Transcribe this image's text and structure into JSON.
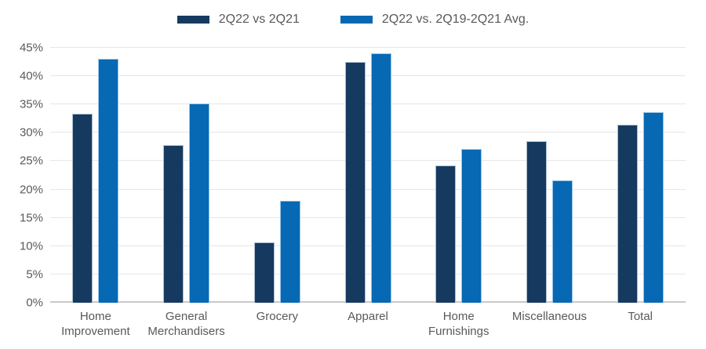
{
  "chart_data": {
    "type": "bar",
    "title": "",
    "categories": [
      "Home Improvement",
      "General Merchandisers",
      "Grocery",
      "Apparel",
      "Home Furnishings",
      "Miscellaneous",
      "Total"
    ],
    "series": [
      {
        "name": "2Q22 vs 2Q21",
        "color": "#163A5F",
        "border_color": "#aebed2",
        "values": [
          33.4,
          27.9,
          10.7,
          42.5,
          24.2,
          28.5,
          31.4
        ]
      },
      {
        "name": "2Q22 vs. 2Q19-2Q21 Avg.",
        "color": "#0768B3",
        "border_color": "#96c3e6",
        "values": [
          43.0,
          35.2,
          18.0,
          44.0,
          27.1,
          21.6,
          33.7
        ]
      }
    ],
    "xlabel": "",
    "ylabel": "",
    "ylim": [
      0,
      45
    ],
    "ytick_step": 5,
    "ytick_labels": [
      "0%",
      "5%",
      "10%",
      "15%",
      "20%",
      "25%",
      "30%",
      "35%",
      "40%",
      "45%"
    ],
    "grid": "horizontal",
    "legend_position": "top"
  },
  "colors": {
    "background": "#ffffff",
    "gridline": "#e7e7e7",
    "axis_line": "#c9c9c9",
    "axis_text": "#595959",
    "legend_text": "#595959"
  }
}
